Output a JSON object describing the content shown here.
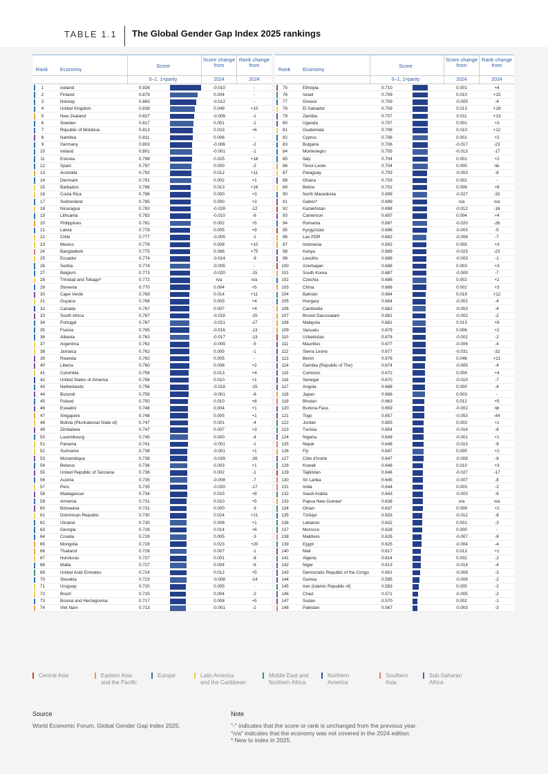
{
  "title": {
    "label": "TABLE 1.1",
    "text": "The Global Gender Gap Index 2025 rankings"
  },
  "headers": {
    "rank": "Rank",
    "economy": "Economy",
    "score": "Score",
    "change": "Score change from",
    "rchange": "Rank change from",
    "scale": "0–1, 1=parity",
    "y2024": "2024"
  },
  "colors": {
    "Central Asia": "#c0392b",
    "East Asia": "#e8a040",
    "Europe": "#2a6fb0",
    "LatAm": "#f2c94c",
    "MENA": "#3a8a7a",
    "North America": "#1f4fa0",
    "South Asia": "#e07a70",
    "SSA": "#7a4a9a"
  },
  "rows_left": [
    [
      1,
      "Iceland",
      0.926,
      "-0.010",
      "-",
      "E"
    ],
    [
      2,
      "Finland",
      0.879,
      "0.004",
      "-",
      "E"
    ],
    [
      3,
      "Norway",
      0.863,
      "-0.012",
      "-",
      "E"
    ],
    [
      4,
      "United Kingdom",
      0.838,
      "0.049",
      "+10",
      "E"
    ],
    [
      5,
      "New Zealand",
      0.827,
      "-0.008",
      "-1",
      "A"
    ],
    [
      6,
      "Sweden",
      0.817,
      "0.001",
      "-1",
      "E"
    ],
    [
      7,
      "Republic of Moldova",
      0.813,
      "0.023",
      "+6",
      "E"
    ],
    [
      8,
      "Namibia",
      0.811,
      "0.006",
      "-",
      "S"
    ],
    [
      9,
      "Germany",
      0.803,
      "-0.006",
      "-2",
      "E"
    ],
    [
      10,
      "Ireland",
      0.801,
      "-0.001",
      "-1",
      "E"
    ],
    [
      11,
      "Estonia",
      0.799,
      "0.025",
      "+18",
      "E"
    ],
    [
      12,
      "Spain",
      0.797,
      "0.000",
      "-2",
      "E"
    ],
    [
      13,
      "Australia",
      0.792,
      "0.012",
      "+11",
      "A"
    ],
    [
      14,
      "Denmark",
      0.791,
      "0.002",
      "+1",
      "E"
    ],
    [
      15,
      "Barbados",
      0.786,
      "0.013",
      "+16",
      "L"
    ],
    [
      16,
      "Costa Rica",
      0.786,
      "0.000",
      "+3",
      "L"
    ],
    [
      17,
      "Switzerland",
      0.785,
      "0.000",
      "+3",
      "E"
    ],
    [
      18,
      "Nicaragua",
      0.783,
      "-0.028",
      "-12",
      "L"
    ],
    [
      19,
      "Lithuania",
      0.783,
      "-0.010",
      "-8",
      "E"
    ],
    [
      20,
      "Philippines",
      0.781,
      "0.002",
      "+5",
      "A"
    ],
    [
      21,
      "Latvia",
      0.778,
      "0.005",
      "+9",
      "E"
    ],
    [
      22,
      "Chile",
      0.777,
      "-0.005",
      "-1",
      "L"
    ],
    [
      23,
      "Mexico",
      0.776,
      "0.008",
      "+10",
      "L"
    ],
    [
      24,
      "Bangladesh",
      0.775,
      "0.086",
      "+75",
      "H"
    ],
    [
      25,
      "Ecuador",
      0.774,
      "-0.014",
      "-9",
      "L"
    ],
    [
      26,
      "Serbia",
      0.774,
      "-0.005",
      "-",
      "E"
    ],
    [
      27,
      "Belgium",
      0.773,
      "-0.020",
      "-15",
      "E"
    ],
    [
      28,
      "Trinidad and Tobago*",
      0.772,
      "n/a",
      "n/a",
      "L"
    ],
    [
      29,
      "Slovenia",
      0.77,
      "0.004",
      "+5",
      "E"
    ],
    [
      30,
      "Cape Verde",
      0.769,
      "0.014",
      "+11",
      "S"
    ],
    [
      31,
      "Guyana",
      0.768,
      "0.003",
      "+4",
      "L"
    ],
    [
      32,
      "Canada",
      0.767,
      "0.007",
      "+4",
      "N"
    ],
    [
      33,
      "South Africa",
      0.767,
      "-0.018",
      "-15",
      "S"
    ],
    [
      34,
      "Portugal",
      0.767,
      "-0.021",
      "-17",
      "E"
    ],
    [
      35,
      "France",
      0.765,
      "-0.016",
      "-13",
      "E"
    ],
    [
      36,
      "Albania",
      0.763,
      "-0.017",
      "-13",
      "E"
    ],
    [
      37,
      "Argentina",
      0.762,
      "-0.009",
      "-5",
      "L"
    ],
    [
      38,
      "Jamaica",
      0.762,
      "0.005",
      "-1",
      "L"
    ],
    [
      39,
      "Rwanda",
      0.762,
      "0.005",
      "-",
      "S"
    ],
    [
      40,
      "Liberia",
      0.76,
      "0.008",
      "+2",
      "S"
    ],
    [
      41,
      "Colombia",
      0.758,
      "0.013",
      "+4",
      "L"
    ],
    [
      42,
      "United States of America",
      0.756,
      "0.010",
      "+1",
      "N"
    ],
    [
      43,
      "Netherlands",
      0.756,
      "-0.018",
      "-15",
      "E"
    ],
    [
      44,
      "Burundi",
      0.756,
      "-0.001",
      "-6",
      "S"
    ],
    [
      45,
      "Poland",
      0.75,
      "0.010",
      "+6",
      "E"
    ],
    [
      46,
      "Eswatini",
      0.748,
      "0.004",
      "+1",
      "S"
    ],
    [
      47,
      "Singapore",
      0.748,
      "0.005",
      "+1",
      "A"
    ],
    [
      48,
      "Bolivia (Plurinational State of)",
      0.747,
      "0.001",
      "-4",
      "L"
    ],
    [
      49,
      "Zimbabwe",
      0.747,
      "0.007",
      "+3",
      "S"
    ],
    [
      50,
      "Luxembourg",
      0.745,
      "0.000",
      "-4",
      "E"
    ],
    [
      51,
      "Panama",
      0.741,
      "-0.001",
      "-1",
      "L"
    ],
    [
      52,
      "Suriname",
      0.738,
      "-0.001",
      "+1",
      "L"
    ],
    [
      53,
      "Mozambique",
      0.738,
      "-0.039",
      "-26",
      "S"
    ],
    [
      54,
      "Belarus",
      0.736,
      "0.003",
      "+1",
      "E"
    ],
    [
      55,
      "United Republic of Tanzania",
      0.736,
      "0.002",
      "-1",
      "S"
    ],
    [
      56,
      "Austria",
      0.735,
      "-0.008",
      "-7",
      "E"
    ],
    [
      57,
      "Peru",
      0.735,
      "-0.020",
      "-17",
      "L"
    ],
    [
      58,
      "Madagascar",
      0.734,
      "0.015",
      "+8",
      "S"
    ],
    [
      59,
      "Armenia",
      0.731,
      "0.010",
      "+5",
      "E"
    ],
    [
      60,
      "Botswana",
      0.731,
      "0.000",
      "-3",
      "S"
    ],
    [
      61,
      "Dominican Republic",
      0.73,
      "0.024",
      "+21",
      "L"
    ],
    [
      62,
      "Ukraine",
      0.73,
      "0.008",
      "+1",
      "E"
    ],
    [
      63,
      "Georgia",
      0.729,
      "0.014",
      "+6",
      "E"
    ],
    [
      64,
      "Croatia",
      0.728,
      "0.005",
      "-3",
      "E"
    ],
    [
      65,
      "Mongolia",
      0.728,
      "0.023",
      "+20",
      "A"
    ],
    [
      66,
      "Thailand",
      0.728,
      "0.007",
      "-1",
      "A"
    ],
    [
      67,
      "Honduras",
      0.727,
      "0.001",
      "-8",
      "L"
    ],
    [
      68,
      "Malta",
      0.727,
      "0.004",
      "-6",
      "E"
    ],
    [
      69,
      "United Arab Emirates",
      0.724,
      "0.012",
      "+5",
      "M"
    ],
    [
      70,
      "Slovakia",
      0.723,
      "-0.008",
      "-14",
      "E"
    ],
    [
      71,
      "Uruguay",
      0.72,
      "0.005",
      "-",
      "L"
    ],
    [
      72,
      "Brazil",
      0.72,
      "0.004",
      "-2",
      "L"
    ],
    [
      73,
      "Bosnia and Herzegovina",
      0.717,
      "0.008",
      "+5",
      "E"
    ],
    [
      74,
      "Viet Nam",
      0.713,
      "-0.001",
      "-2",
      "A"
    ]
  ],
  "rows_right": [
    [
      75,
      "Ethiopia",
      0.71,
      "0.001",
      "+4",
      "S"
    ],
    [
      76,
      "Israel",
      0.709,
      "0.010",
      "+15",
      "M"
    ],
    [
      77,
      "Greece",
      0.709,
      "-0.005",
      "-4",
      "E"
    ],
    [
      78,
      "El Salvador",
      0.709,
      "0.013",
      "+18",
      "L"
    ],
    [
      79,
      "Zambia",
      0.707,
      "0.011",
      "+13",
      "S"
    ],
    [
      80,
      "Uganda",
      0.707,
      "0.001",
      "+3",
      "S"
    ],
    [
      81,
      "Guatemala",
      0.706,
      "0.010",
      "+12",
      "L"
    ],
    [
      82,
      "Cyprus",
      0.706,
      "0.001",
      "+2",
      "E"
    ],
    [
      83,
      "Bulgaria",
      0.706,
      "-0.017",
      "-23",
      "E"
    ],
    [
      84,
      "Montenegro",
      0.705,
      "-0.013",
      "-17",
      "E"
    ],
    [
      85,
      "Italy",
      0.704,
      "0.001",
      "+2",
      "E"
    ],
    [
      86,
      "Timor-Leste",
      0.704,
      "0.000",
      "nb",
      "A"
    ],
    [
      87,
      "Paraguay",
      0.703,
      "-0.003",
      "-6",
      "L"
    ],
    [
      88,
      "Ghana",
      0.703,
      "0.002",
      "-",
      "S"
    ],
    [
      89,
      "Belize",
      0.702,
      "0.006",
      "+6",
      "L"
    ],
    [
      90,
      "North Macedonia",
      0.699,
      "-0.027",
      "-32",
      "E"
    ],
    [
      91,
      "Gabon*",
      0.699,
      "n/a",
      "n/a",
      "S"
    ],
    [
      92,
      "Kazakhstan",
      0.698,
      "-0.012",
      "-16",
      "C"
    ],
    [
      93,
      "Cameroon",
      0.697,
      "0.004",
      "+4",
      "S"
    ],
    [
      94,
      "Romania",
      0.697,
      "-0.020",
      "-26",
      "E"
    ],
    [
      95,
      "Kyrgyzstan",
      0.696,
      "-0.003",
      "-5",
      "C"
    ],
    [
      96,
      "Lao PDR",
      0.692,
      "-0.008",
      "-7",
      "A"
    ],
    [
      97,
      "Indonesia",
      0.692,
      "0.005",
      "+3",
      "A"
    ],
    [
      98,
      "Kenya",
      0.689,
      "-0.023",
      "-23",
      "S"
    ],
    [
      99,
      "Lesotho",
      0.688,
      "-0.003",
      "-1",
      "S"
    ],
    [
      100,
      "Azerbaijan",
      0.688,
      "0.003",
      "+3",
      "C"
    ],
    [
      101,
      "South Korea",
      0.687,
      "-0.009",
      "-7",
      "A"
    ],
    [
      102,
      "Czechia",
      0.686,
      "0.002",
      "+2",
      "E"
    ],
    [
      103,
      "China",
      0.686,
      "0.002",
      "+3",
      "A"
    ],
    [
      104,
      "Bahrain",
      0.684,
      "0.019",
      "+12",
      "M"
    ],
    [
      105,
      "Hungary",
      0.684,
      "-0.002",
      "-4",
      "E"
    ],
    [
      106,
      "Cambodia",
      0.682,
      "-0.003",
      "-4",
      "A"
    ],
    [
      107,
      "Brunei Darussalam",
      0.681,
      "-0.002",
      "-2",
      "A"
    ],
    [
      108,
      "Malaysia",
      0.681,
      "0.013",
      "+6",
      "A"
    ],
    [
      109,
      "Vanuatu",
      0.679,
      "0.006",
      "+2",
      "A"
    ],
    [
      110,
      "Uzbekistan",
      0.678,
      "-0.002",
      "-2",
      "C"
    ],
    [
      111,
      "Mauritius",
      0.677,
      "-0.006",
      "-4",
      "S"
    ],
    [
      112,
      "Sierra Leone",
      0.677,
      "-0.031",
      "-32",
      "S"
    ],
    [
      113,
      "Benin",
      0.676,
      "0.046",
      "+21",
      "S"
    ],
    [
      114,
      "Gambia (Republic of The)",
      0.674,
      "-0.005",
      "-4",
      "S"
    ],
    [
      115,
      "Comoros",
      0.672,
      "0.009",
      "+4",
      "S"
    ],
    [
      116,
      "Senegal",
      0.67,
      "-0.010",
      "-7",
      "S"
    ],
    [
      117,
      "Angola",
      0.668,
      "0.000",
      "-4",
      "S"
    ],
    [
      118,
      "Japan",
      0.666,
      "0.003",
      "-",
      "A"
    ],
    [
      119,
      "Bhutan",
      0.663,
      "0.012",
      "+5",
      "H"
    ],
    [
      120,
      "Burkina Faso",
      0.659,
      "-0.002",
      "nb",
      "S"
    ],
    [
      121,
      "Togo",
      0.657,
      "-0.053",
      "-44",
      "S"
    ],
    [
      122,
      "Jordan",
      0.655,
      "0.003",
      "+1",
      "M"
    ],
    [
      123,
      "Tunisia",
      0.654,
      "-0.014",
      "-8",
      "M"
    ],
    [
      124,
      "Nigeria",
      0.649,
      "-0.001",
      "+1",
      "S"
    ],
    [
      125,
      "Nepal",
      0.648,
      "-0.015",
      "-8",
      "H"
    ],
    [
      126,
      "Fiji",
      0.647,
      "0.005",
      "+2",
      "A"
    ],
    [
      127,
      "Côte d'Ivoire",
      0.647,
      "-0.008",
      "-6",
      "S"
    ],
    [
      128,
      "Kuwait",
      0.646,
      "0.010",
      "+3",
      "M"
    ],
    [
      129,
      "Tajikistan",
      0.646,
      "-0.027",
      "-17",
      "C"
    ],
    [
      130,
      "Sri Lanka",
      0.645,
      "-0.007",
      "-8",
      "H"
    ],
    [
      131,
      "India",
      0.644,
      "0.003",
      "-2",
      "H"
    ],
    [
      132,
      "Saudi Arabia",
      0.643,
      "-0.003",
      "-6",
      "M"
    ],
    [
      133,
      "Papua New Guinea*",
      0.638,
      "n/a",
      "n/a",
      "A"
    ],
    [
      134,
      "Oman",
      0.637,
      "0.009",
      "+2",
      "M"
    ],
    [
      135,
      "Türkiye",
      0.633,
      "-0.012",
      "-8",
      "E"
    ],
    [
      136,
      "Lebanon",
      0.632,
      "0.001",
      "-3",
      "M"
    ],
    [
      137,
      "Morocco",
      0.628,
      "0.000",
      "-",
      "M"
    ],
    [
      138,
      "Maldives",
      0.626,
      "-0.007",
      "-6",
      "H"
    ],
    [
      139,
      "Egypt",
      0.625,
      "-0.004",
      "-4",
      "M"
    ],
    [
      140,
      "Mali",
      0.617,
      "0.013",
      "+1",
      "S"
    ],
    [
      141,
      "Algeria",
      0.614,
      "0.002",
      "-2",
      "M"
    ],
    [
      142,
      "Niger",
      0.613,
      "-0.014",
      "-4",
      "S"
    ],
    [
      143,
      "Democratic Republic of the Congo",
      0.601,
      "-0.008",
      "-3",
      "S"
    ],
    [
      144,
      "Guinea",
      0.595,
      "-0.006",
      "-2",
      "S"
    ],
    [
      145,
      "Iran (Islamic Republic of)",
      0.583,
      "0.005",
      "-2",
      "M"
    ],
    [
      146,
      "Chad",
      0.571,
      "-0.005",
      "-2",
      "S"
    ],
    [
      147,
      "Sudan",
      0.57,
      "0.002",
      "-1",
      "S"
    ],
    [
      148,
      "Pakistan",
      0.567,
      "-0.003",
      "-3",
      "H"
    ]
  ],
  "legend": [
    [
      "C",
      "Central Asia"
    ],
    [
      "A",
      "Eastern Asia and the Pacific"
    ],
    [
      "E",
      "Europe"
    ],
    [
      "L",
      "Latin America and the Caribbean"
    ],
    [
      "M",
      "Middle East and Northern Africa"
    ],
    [
      "N",
      "Northern America"
    ],
    [
      "H",
      "Southern Asia"
    ],
    [
      "S",
      "Sub-Saharan Africa"
    ]
  ],
  "legend_lines": [
    [
      "Central Asia"
    ],
    [
      "Eastern Asia",
      "and the Pacific"
    ],
    [
      "Europe"
    ],
    [
      "Latin America",
      "and the Caribbean"
    ],
    [
      "Middle East and",
      "Northern Africa"
    ],
    [
      "Northern",
      "America"
    ],
    [
      "Southern",
      "Asia"
    ],
    [
      "Sub-Saharan",
      "Africa"
    ]
  ],
  "source": {
    "label": "Source",
    "text": "World Economic Forum, Global Gender Gap Index 2025."
  },
  "note": {
    "label": "Note",
    "lines": [
      "\"-\" indicates that the score or rank is unchanged from the previous year.",
      "\"n/a\" indicates that the economy was not covered in the 2024 edition.",
      "* New to index in 2025."
    ]
  }
}
